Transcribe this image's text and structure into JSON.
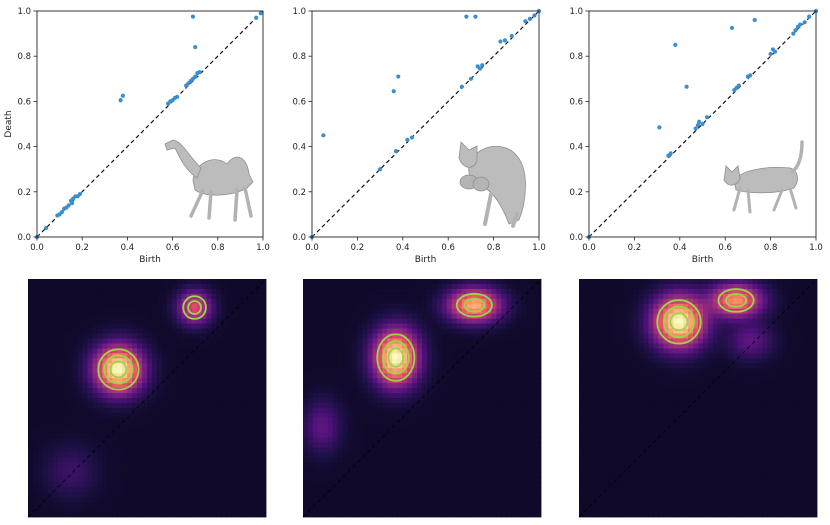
{
  "chart_data": [
    {
      "type": "scatter",
      "title": "",
      "xlabel": "Birth",
      "ylabel": "Death",
      "xlim": [
        0,
        1
      ],
      "ylim": [
        0,
        1
      ],
      "xticks": [
        "0.0",
        "0.2",
        "0.4",
        "0.6",
        "0.8",
        "1.0"
      ],
      "yticks": [
        "0.0",
        "0.2",
        "0.4",
        "0.6",
        "0.8",
        "1.0"
      ],
      "diagonal": "dashed y = x",
      "inset_shape": "camel",
      "point_color": "#3b8fd0",
      "points": [
        [
          0.0,
          0.0
        ],
        [
          0.04,
          0.04
        ],
        [
          0.09,
          0.095
        ],
        [
          0.1,
          0.1
        ],
        [
          0.11,
          0.11
        ],
        [
          0.12,
          0.125
        ],
        [
          0.13,
          0.13
        ],
        [
          0.14,
          0.14
        ],
        [
          0.15,
          0.16
        ],
        [
          0.155,
          0.15
        ],
        [
          0.16,
          0.17
        ],
        [
          0.17,
          0.18
        ],
        [
          0.18,
          0.18
        ],
        [
          0.19,
          0.19
        ],
        [
          0.37,
          0.605
        ],
        [
          0.38,
          0.625
        ],
        [
          0.58,
          0.59
        ],
        [
          0.59,
          0.6
        ],
        [
          0.6,
          0.605
        ],
        [
          0.61,
          0.615
        ],
        [
          0.62,
          0.62
        ],
        [
          0.66,
          0.67
        ],
        [
          0.67,
          0.68
        ],
        [
          0.68,
          0.69
        ],
        [
          0.69,
          0.7
        ],
        [
          0.7,
          0.71
        ],
        [
          0.71,
          0.725
        ],
        [
          0.72,
          0.73
        ],
        [
          0.69,
          0.975
        ],
        [
          0.7,
          0.84
        ],
        [
          0.97,
          0.97
        ],
        [
          0.99,
          0.99
        ]
      ]
    },
    {
      "type": "scatter",
      "title": "",
      "xlabel": "Birth",
      "ylabel": "",
      "xlim": [
        0,
        1
      ],
      "ylim": [
        0,
        1
      ],
      "xticks": [
        "0.0",
        "0.2",
        "0.4",
        "0.6",
        "0.8",
        "1.0"
      ],
      "yticks": [
        "0.0",
        "0.2",
        "0.4",
        "0.6",
        "0.8",
        "1.0"
      ],
      "diagonal": "dashed y = x",
      "inset_shape": "crouching-cat",
      "point_color": "#3b8fd0",
      "points": [
        [
          0.0,
          0.0
        ],
        [
          0.05,
          0.45
        ],
        [
          0.3,
          0.3
        ],
        [
          0.36,
          0.645
        ],
        [
          0.37,
          0.38
        ],
        [
          0.38,
          0.71
        ],
        [
          0.42,
          0.43
        ],
        [
          0.44,
          0.44
        ],
        [
          0.66,
          0.665
        ],
        [
          0.68,
          0.975
        ],
        [
          0.7,
          0.7
        ],
        [
          0.72,
          0.975
        ],
        [
          0.73,
          0.755
        ],
        [
          0.74,
          0.745
        ],
        [
          0.75,
          0.76
        ],
        [
          0.83,
          0.865
        ],
        [
          0.85,
          0.87
        ],
        [
          0.88,
          0.89
        ],
        [
          0.94,
          0.955
        ],
        [
          0.96,
          0.965
        ],
        [
          0.98,
          0.98
        ],
        [
          1.0,
          1.0
        ]
      ]
    },
    {
      "type": "scatter",
      "title": "",
      "xlabel": "Birth",
      "ylabel": "",
      "xlim": [
        0,
        1
      ],
      "ylim": [
        0,
        1
      ],
      "xticks": [
        "0.0",
        "0.2",
        "0.4",
        "0.6",
        "0.8",
        "1.0"
      ],
      "yticks": [
        "0.0",
        "0.2",
        "0.4",
        "0.6",
        "0.8",
        "1.0"
      ],
      "diagonal": "dashed y = x",
      "inset_shape": "walking-cat",
      "point_color": "#3b8fd0",
      "points": [
        [
          0.0,
          0.0
        ],
        [
          0.31,
          0.485
        ],
        [
          0.35,
          0.36
        ],
        [
          0.36,
          0.37
        ],
        [
          0.38,
          0.85
        ],
        [
          0.43,
          0.665
        ],
        [
          0.47,
          0.48
        ],
        [
          0.48,
          0.495
        ],
        [
          0.485,
          0.51
        ],
        [
          0.5,
          0.5
        ],
        [
          0.52,
          0.53
        ],
        [
          0.63,
          0.925
        ],
        [
          0.64,
          0.65
        ],
        [
          0.65,
          0.66
        ],
        [
          0.66,
          0.67
        ],
        [
          0.7,
          0.71
        ],
        [
          0.71,
          0.715
        ],
        [
          0.73,
          0.96
        ],
        [
          0.8,
          0.81
        ],
        [
          0.81,
          0.83
        ],
        [
          0.82,
          0.82
        ],
        [
          0.9,
          0.9
        ],
        [
          0.91,
          0.915
        ],
        [
          0.92,
          0.93
        ],
        [
          0.93,
          0.94
        ],
        [
          0.95,
          0.95
        ],
        [
          0.97,
          0.975
        ],
        [
          1.0,
          1.0
        ]
      ]
    },
    {
      "type": "heatmap",
      "title": "",
      "colormap": "magma",
      "contour_color": "#9ad448",
      "diagonal": "dashed y = x",
      "blobs": [
        {
          "x": 0.38,
          "y": 0.62,
          "sx": 0.065,
          "sy": 0.065,
          "w": 1.0
        },
        {
          "x": 0.7,
          "y": 0.88,
          "sx": 0.045,
          "sy": 0.045,
          "w": 0.52
        },
        {
          "x": 0.18,
          "y": 0.19,
          "sx": 0.07,
          "sy": 0.07,
          "w": 0.1
        }
      ]
    },
    {
      "type": "heatmap",
      "title": "",
      "colormap": "magma",
      "contour_color": "#9ad448",
      "diagonal": "dashed y = x",
      "blobs": [
        {
          "x": 0.39,
          "y": 0.67,
          "sx": 0.06,
          "sy": 0.075,
          "w": 1.0
        },
        {
          "x": 0.72,
          "y": 0.89,
          "sx": 0.07,
          "sy": 0.045,
          "w": 0.8
        },
        {
          "x": 0.08,
          "y": 0.38,
          "sx": 0.05,
          "sy": 0.07,
          "w": 0.18
        }
      ]
    },
    {
      "type": "heatmap",
      "title": "",
      "colormap": "magma",
      "contour_color": "#9ad448",
      "diagonal": "dashed y = x",
      "blobs": [
        {
          "x": 0.42,
          "y": 0.82,
          "sx": 0.07,
          "sy": 0.07,
          "w": 1.0
        },
        {
          "x": 0.66,
          "y": 0.91,
          "sx": 0.07,
          "sy": 0.045,
          "w": 0.72
        },
        {
          "x": 0.72,
          "y": 0.74,
          "sx": 0.06,
          "sy": 0.05,
          "w": 0.18
        }
      ]
    }
  ]
}
